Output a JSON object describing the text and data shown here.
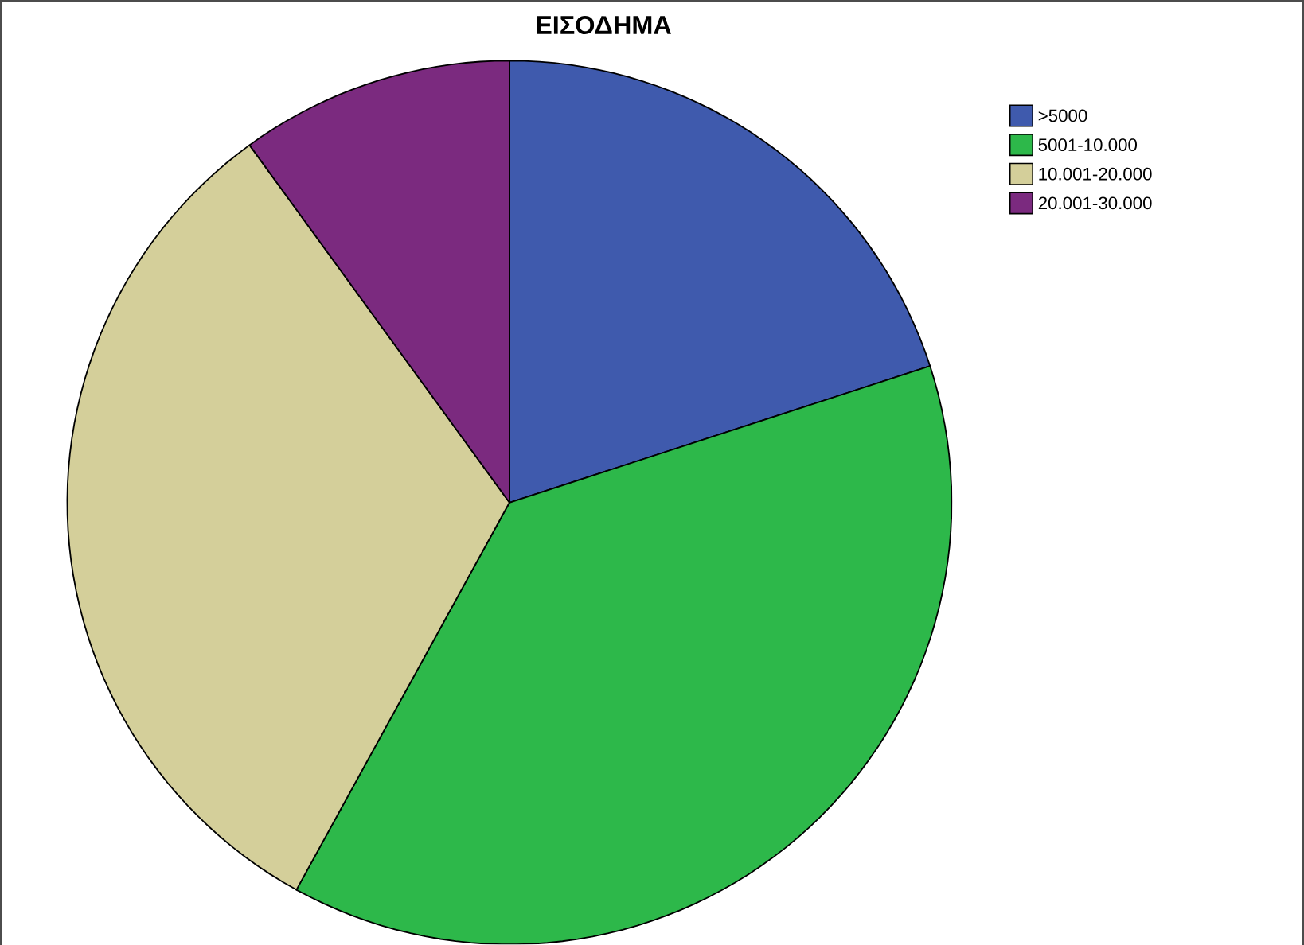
{
  "chart_data": {
    "type": "pie",
    "title": "ΕΙΣΟΔΗΜΑ",
    "categories": [
      ">5000",
      "5001-10.000",
      "10.001-20.000",
      "20.001-30.000"
    ],
    "values": [
      20,
      38,
      32,
      10
    ],
    "colors": [
      "#3f5aad",
      "#2db84a",
      "#d4cf9a",
      "#7b2a7f"
    ],
    "legend": "top right"
  }
}
